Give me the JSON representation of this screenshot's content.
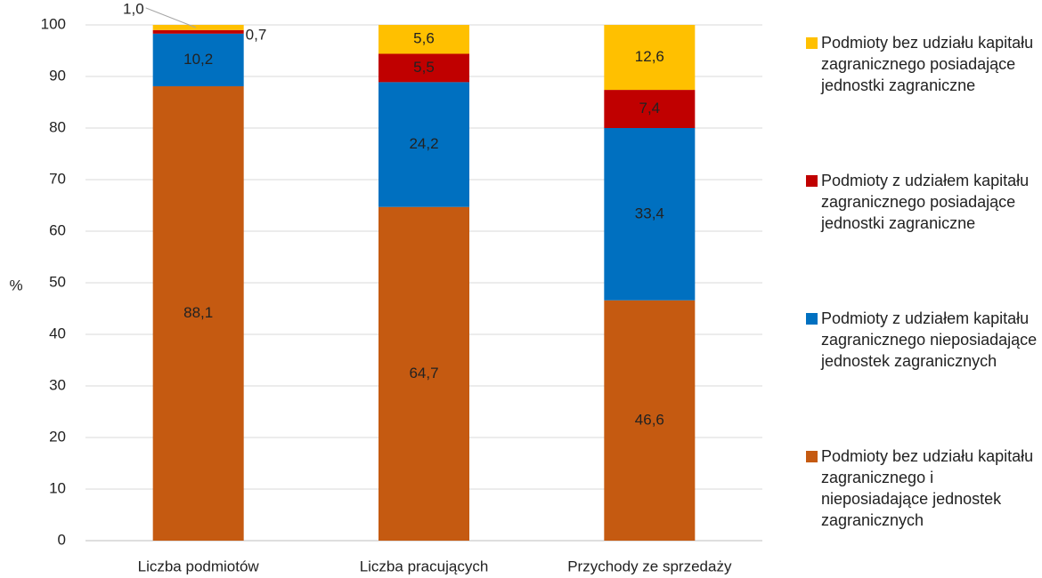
{
  "chart_data": {
    "type": "stacked_bar",
    "y_label": "%",
    "categories": [
      "Liczba podmiotów",
      "Liczba pracujących",
      "Przychody ze sprzedaży"
    ],
    "series": [
      {
        "name": "Podmioty bez udziału kapitału zagranicznego i nieposiadające jednostek zagranicznych",
        "color": "#c55a11",
        "values": [
          88.1,
          64.7,
          46.6
        ],
        "value_labels": [
          "88,1",
          "64,7",
          "46,6"
        ]
      },
      {
        "name": "Podmioty z udziałem kapitału zagranicznego nieposiadające jednostek zagranicznych",
        "color": "#0070c0",
        "values": [
          10.2,
          24.2,
          33.4
        ],
        "value_labels": [
          "10,2",
          "24,2",
          "33,4"
        ]
      },
      {
        "name": "Podmioty z udziałem kapitału zagranicznego posiadające jednostki zagraniczne",
        "color": "#c00000",
        "values": [
          0.7,
          5.5,
          7.4
        ],
        "value_labels": [
          "0,7",
          "5,5",
          "7,4"
        ]
      },
      {
        "name": "Podmioty bez udziału kapitału zagranicznego posiadające jednostki zagraniczne",
        "color": "#ffc000",
        "values": [
          1.0,
          5.6,
          12.6
        ],
        "value_labels": [
          "1,0",
          "5,6",
          "12,6"
        ]
      }
    ],
    "ylim": [
      0,
      100
    ],
    "yticks": [
      0,
      10,
      20,
      30,
      40,
      50,
      60,
      70,
      80,
      90,
      100
    ],
    "grid": true,
    "legend": "right"
  }
}
